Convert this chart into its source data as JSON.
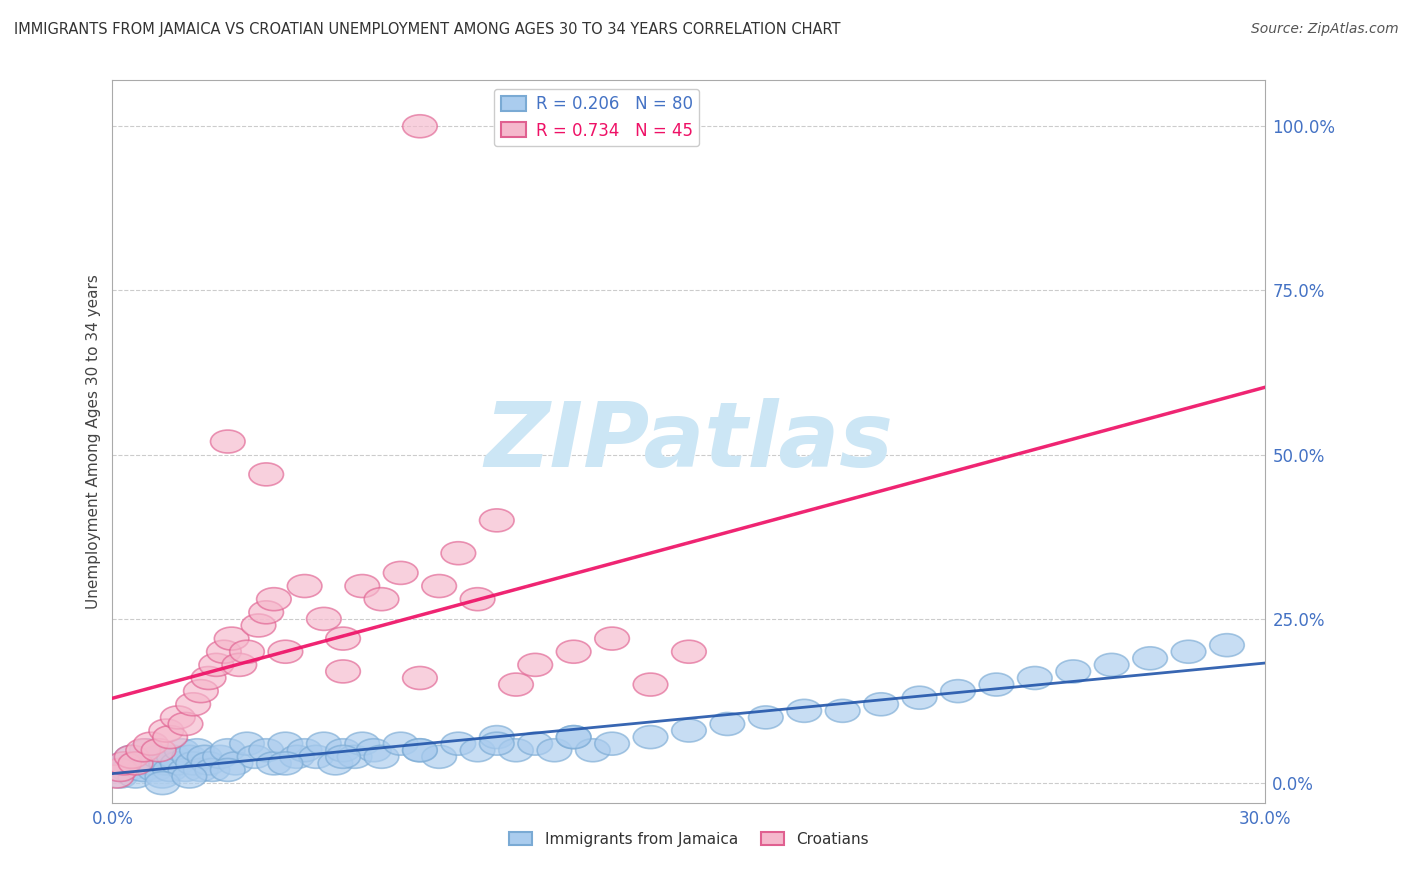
{
  "title": "IMMIGRANTS FROM JAMAICA VS CROATIAN UNEMPLOYMENT AMONG AGES 30 TO 34 YEARS CORRELATION CHART",
  "source": "Source: ZipAtlas.com",
  "ylabel": "Unemployment Among Ages 30 to 34 years",
  "ytick_labels": [
    "0.0%",
    "25.0%",
    "50.0%",
    "75.0%",
    "100.0%"
  ],
  "ytick_values": [
    0,
    25,
    50,
    75,
    100
  ],
  "xmin": 0.0,
  "xmax": 30.0,
  "ymin": -3.0,
  "ymax": 107.0,
  "watermark": "ZIPatlas",
  "watermark_color": "#cce6f5",
  "series1_color": "#aaccee",
  "series1_edge": "#7aaad4",
  "series2_color": "#f5b8cc",
  "series2_edge": "#e06090",
  "trend1_color": "#2255aa",
  "trend2_color": "#ee1166",
  "grid_color": "#cccccc",
  "background_color": "#ffffff",
  "legend_label1": "R = 0.206   N = 80",
  "legend_label2": "R = 0.734   N = 45",
  "legend_color1": "#4472C4",
  "legend_color2": "#ee1166",
  "bottom_label1": "Immigrants from Jamaica",
  "bottom_label2": "Croatians",
  "jamaica_x": [
    0.1,
    0.2,
    0.3,
    0.4,
    0.5,
    0.6,
    0.7,
    0.8,
    0.9,
    1.0,
    1.1,
    1.2,
    1.3,
    1.4,
    1.5,
    1.6,
    1.7,
    1.8,
    1.9,
    2.0,
    2.1,
    2.2,
    2.3,
    2.4,
    2.5,
    2.6,
    2.8,
    3.0,
    3.2,
    3.5,
    3.7,
    4.0,
    4.2,
    4.5,
    4.8,
    5.0,
    5.3,
    5.5,
    5.8,
    6.0,
    6.3,
    6.5,
    6.8,
    7.0,
    7.5,
    8.0,
    8.5,
    9.0,
    9.5,
    10.0,
    10.5,
    11.0,
    11.5,
    12.0,
    12.5,
    13.0,
    14.0,
    15.0,
    16.0,
    17.0,
    18.0,
    19.0,
    20.0,
    21.0,
    22.0,
    23.0,
    24.0,
    25.0,
    26.0,
    27.0,
    28.0,
    29.0,
    1.3,
    2.0,
    3.0,
    4.5,
    6.0,
    8.0,
    10.0,
    12.0
  ],
  "jamaica_y": [
    2,
    1,
    3,
    2,
    4,
    1,
    3,
    2,
    5,
    3,
    2,
    4,
    1,
    3,
    2,
    4,
    3,
    5,
    2,
    4,
    3,
    5,
    2,
    4,
    3,
    2,
    4,
    5,
    3,
    6,
    4,
    5,
    3,
    6,
    4,
    5,
    4,
    6,
    3,
    5,
    4,
    6,
    5,
    4,
    6,
    5,
    4,
    6,
    5,
    7,
    5,
    6,
    5,
    7,
    5,
    6,
    7,
    8,
    9,
    10,
    11,
    11,
    12,
    13,
    14,
    15,
    16,
    17,
    18,
    19,
    20,
    21,
    0,
    1,
    2,
    3,
    4,
    5,
    6,
    7
  ],
  "croatian_x": [
    0.1,
    0.2,
    0.3,
    0.5,
    0.6,
    0.8,
    1.0,
    1.2,
    1.4,
    1.5,
    1.7,
    1.9,
    2.1,
    2.3,
    2.5,
    2.7,
    2.9,
    3.1,
    3.3,
    3.5,
    3.8,
    4.0,
    4.2,
    4.5,
    5.0,
    5.5,
    6.0,
    6.5,
    7.0,
    7.5,
    8.0,
    8.5,
    9.0,
    9.5,
    10.0,
    10.5,
    11.0,
    12.0,
    13.0,
    14.0,
    15.0,
    3.0,
    4.0,
    6.0,
    8.0
  ],
  "croatian_y": [
    1,
    2,
    3,
    4,
    3,
    5,
    6,
    5,
    8,
    7,
    10,
    9,
    12,
    14,
    16,
    18,
    20,
    22,
    18,
    20,
    24,
    26,
    28,
    20,
    30,
    25,
    22,
    30,
    28,
    32,
    100,
    30,
    35,
    28,
    40,
    15,
    18,
    20,
    22,
    15,
    20,
    52,
    47,
    17,
    16
  ]
}
